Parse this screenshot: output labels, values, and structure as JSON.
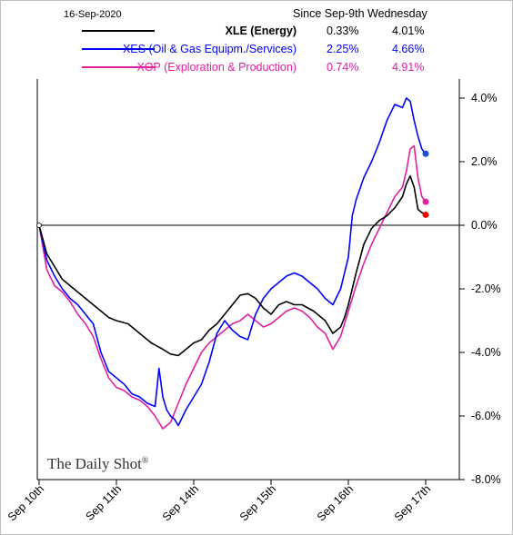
{
  "date_stamp": "16-Sep-2020",
  "watermark": "The Daily Shot",
  "watermark_mark": "®",
  "chart_data": {
    "type": "line",
    "columns": [
      "Since Sep-9th",
      "Wednesday"
    ],
    "x_ticks": [
      "Sep 10th",
      "Sep 11th",
      "Sep 14th",
      "Sep 15th",
      "Sep 16th",
      "Sep 17th"
    ],
    "y_ticks": [
      "4.0%",
      "2.0%",
      "0.0%",
      "-2.0%",
      "-4.0%",
      "-6.0%",
      "-8.0%"
    ],
    "ylim": [
      -8,
      4.6
    ],
    "xlim": [
      0,
      5
    ],
    "zero_line": 0,
    "series": [
      {
        "name": "XLE (Energy)",
        "since": "0.33%",
        "wednesday": "4.01%",
        "color": "#000000",
        "dot_color": "#ff0000",
        "points": [
          [
            0,
            0
          ],
          [
            0.1,
            -0.9
          ],
          [
            0.2,
            -1.3
          ],
          [
            0.3,
            -1.7
          ],
          [
            0.4,
            -1.9
          ],
          [
            0.5,
            -2.1
          ],
          [
            0.6,
            -2.3
          ],
          [
            0.7,
            -2.5
          ],
          [
            0.8,
            -2.7
          ],
          [
            0.9,
            -2.9
          ],
          [
            1.0,
            -3.0
          ],
          [
            1.15,
            -3.1
          ],
          [
            1.3,
            -3.4
          ],
          [
            1.45,
            -3.7
          ],
          [
            1.6,
            -3.9
          ],
          [
            1.7,
            -4.05
          ],
          [
            1.8,
            -4.1
          ],
          [
            1.9,
            -3.9
          ],
          [
            2.0,
            -3.7
          ],
          [
            2.1,
            -3.6
          ],
          [
            2.2,
            -3.3
          ],
          [
            2.3,
            -3.1
          ],
          [
            2.4,
            -2.8
          ],
          [
            2.5,
            -2.5
          ],
          [
            2.6,
            -2.2
          ],
          [
            2.7,
            -2.15
          ],
          [
            2.8,
            -2.3
          ],
          [
            2.9,
            -2.6
          ],
          [
            3.0,
            -2.8
          ],
          [
            3.1,
            -2.5
          ],
          [
            3.2,
            -2.4
          ],
          [
            3.3,
            -2.5
          ],
          [
            3.4,
            -2.5
          ],
          [
            3.55,
            -2.7
          ],
          [
            3.7,
            -3.0
          ],
          [
            3.8,
            -3.4
          ],
          [
            3.9,
            -3.2
          ],
          [
            3.95,
            -2.9
          ],
          [
            4.0,
            -2.5
          ],
          [
            4.1,
            -1.5
          ],
          [
            4.2,
            -0.6
          ],
          [
            4.3,
            -0.1
          ],
          [
            4.4,
            0.15
          ],
          [
            4.5,
            0.3
          ],
          [
            4.6,
            0.55
          ],
          [
            4.7,
            0.9
          ],
          [
            4.75,
            1.3
          ],
          [
            4.8,
            1.55
          ],
          [
            4.85,
            1.2
          ],
          [
            4.9,
            0.5
          ],
          [
            4.95,
            0.4
          ],
          [
            5.0,
            0.33
          ]
        ]
      },
      {
        "name": "XES (Oil & Gas Equipm./Services)",
        "since": "2.25%",
        "wednesday": "4.66%",
        "color": "#0000ff",
        "dot_color": "#1f4fd6",
        "points": [
          [
            0,
            0
          ],
          [
            0.1,
            -1.1
          ],
          [
            0.2,
            -1.6
          ],
          [
            0.3,
            -2.0
          ],
          [
            0.4,
            -2.3
          ],
          [
            0.5,
            -2.5
          ],
          [
            0.6,
            -2.8
          ],
          [
            0.7,
            -3.1
          ],
          [
            0.8,
            -4.0
          ],
          [
            0.9,
            -4.6
          ],
          [
            1.0,
            -4.8
          ],
          [
            1.1,
            -5.0
          ],
          [
            1.2,
            -5.3
          ],
          [
            1.3,
            -5.4
          ],
          [
            1.4,
            -5.6
          ],
          [
            1.5,
            -5.7
          ],
          [
            1.55,
            -4.5
          ],
          [
            1.6,
            -5.4
          ],
          [
            1.65,
            -5.8
          ],
          [
            1.7,
            -6.0
          ],
          [
            1.75,
            -6.1
          ],
          [
            1.8,
            -6.3
          ],
          [
            1.9,
            -5.8
          ],
          [
            2.0,
            -5.4
          ],
          [
            2.1,
            -5.0
          ],
          [
            2.2,
            -4.3
          ],
          [
            2.3,
            -3.4
          ],
          [
            2.4,
            -3.0
          ],
          [
            2.5,
            -3.3
          ],
          [
            2.6,
            -3.5
          ],
          [
            2.7,
            -3.6
          ],
          [
            2.8,
            -2.8
          ],
          [
            2.9,
            -2.3
          ],
          [
            3.0,
            -2.0
          ],
          [
            3.1,
            -1.8
          ],
          [
            3.2,
            -1.6
          ],
          [
            3.3,
            -1.5
          ],
          [
            3.4,
            -1.6
          ],
          [
            3.5,
            -1.8
          ],
          [
            3.6,
            -2.0
          ],
          [
            3.7,
            -2.3
          ],
          [
            3.8,
            -2.5
          ],
          [
            3.9,
            -2.0
          ],
          [
            4.0,
            -1.0
          ],
          [
            4.05,
            0.3
          ],
          [
            4.1,
            0.8
          ],
          [
            4.2,
            1.5
          ],
          [
            4.3,
            2.0
          ],
          [
            4.4,
            2.6
          ],
          [
            4.5,
            3.3
          ],
          [
            4.6,
            3.8
          ],
          [
            4.7,
            3.7
          ],
          [
            4.75,
            4.0
          ],
          [
            4.8,
            3.9
          ],
          [
            4.85,
            3.3
          ],
          [
            4.9,
            2.8
          ],
          [
            4.95,
            2.4
          ],
          [
            5.0,
            2.25
          ]
        ]
      },
      {
        "name": "XOP (Exploration & Production)",
        "since": "0.74%",
        "wednesday": "4.91%",
        "color": "#e020a0",
        "dot_color": "#e8209a",
        "points": [
          [
            0,
            0
          ],
          [
            0.1,
            -1.4
          ],
          [
            0.2,
            -1.9
          ],
          [
            0.3,
            -2.1
          ],
          [
            0.4,
            -2.4
          ],
          [
            0.5,
            -2.8
          ],
          [
            0.6,
            -3.1
          ],
          [
            0.7,
            -3.5
          ],
          [
            0.8,
            -4.2
          ],
          [
            0.9,
            -4.8
          ],
          [
            1.0,
            -5.1
          ],
          [
            1.1,
            -5.2
          ],
          [
            1.2,
            -5.4
          ],
          [
            1.3,
            -5.5
          ],
          [
            1.4,
            -5.7
          ],
          [
            1.5,
            -6.0
          ],
          [
            1.6,
            -6.4
          ],
          [
            1.7,
            -6.2
          ],
          [
            1.8,
            -5.6
          ],
          [
            1.9,
            -5.0
          ],
          [
            2.0,
            -4.5
          ],
          [
            2.1,
            -4.0
          ],
          [
            2.2,
            -3.7
          ],
          [
            2.3,
            -3.5
          ],
          [
            2.4,
            -3.3
          ],
          [
            2.5,
            -3.1
          ],
          [
            2.6,
            -3.0
          ],
          [
            2.7,
            -2.8
          ],
          [
            2.8,
            -3.0
          ],
          [
            2.9,
            -3.2
          ],
          [
            3.0,
            -3.1
          ],
          [
            3.1,
            -2.9
          ],
          [
            3.2,
            -2.7
          ],
          [
            3.3,
            -2.6
          ],
          [
            3.4,
            -2.7
          ],
          [
            3.5,
            -2.9
          ],
          [
            3.6,
            -3.2
          ],
          [
            3.7,
            -3.4
          ],
          [
            3.8,
            -3.9
          ],
          [
            3.9,
            -3.5
          ],
          [
            4.0,
            -2.7
          ],
          [
            4.1,
            -1.9
          ],
          [
            4.2,
            -1.2
          ],
          [
            4.3,
            -0.6
          ],
          [
            4.4,
            -0.1
          ],
          [
            4.5,
            0.4
          ],
          [
            4.6,
            0.9
          ],
          [
            4.7,
            1.2
          ],
          [
            4.75,
            1.7
          ],
          [
            4.8,
            2.4
          ],
          [
            4.85,
            2.5
          ],
          [
            4.9,
            1.5
          ],
          [
            4.95,
            0.9
          ],
          [
            5.0,
            0.74
          ]
        ]
      }
    ]
  }
}
